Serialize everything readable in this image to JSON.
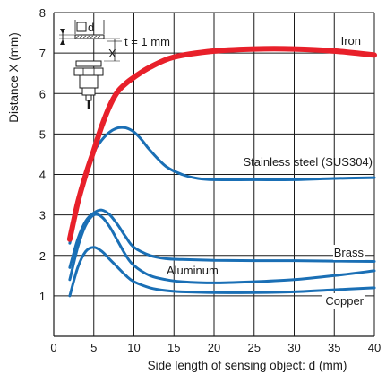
{
  "chart_data": {
    "type": "line",
    "xlabel": "Side length of sensing object: d (mm)",
    "ylabel": "Distance X (mm)",
    "xlim": [
      0,
      40
    ],
    "ylim": [
      0,
      8
    ],
    "xticks": [
      0,
      5,
      10,
      15,
      20,
      25,
      30,
      35,
      40
    ],
    "yticks": [
      1,
      2,
      3,
      4,
      5,
      6,
      7,
      8
    ],
    "grid": true,
    "series": [
      {
        "name": "Iron",
        "color": "#e8202a",
        "line_style": "thick",
        "x": [
          2,
          3,
          4,
          5,
          6,
          7,
          8,
          9,
          10,
          12,
          15,
          20,
          25,
          30,
          35,
          40
        ],
        "y": [
          2.4,
          3.3,
          4.0,
          4.6,
          5.2,
          5.7,
          6.05,
          6.25,
          6.4,
          6.65,
          6.9,
          7.05,
          7.1,
          7.1,
          7.05,
          6.95
        ]
      },
      {
        "name": "Stainless steel (SUS304)",
        "color": "#1a6fb5",
        "x": [
          2,
          3,
          4,
          5,
          6,
          7,
          8,
          9,
          10,
          11,
          12,
          14,
          16,
          18,
          20,
          25,
          30,
          35,
          40
        ],
        "y": [
          2.3,
          3.2,
          4.0,
          4.55,
          4.85,
          5.05,
          5.15,
          5.15,
          5.05,
          4.85,
          4.6,
          4.2,
          4.0,
          3.9,
          3.87,
          3.87,
          3.87,
          3.9,
          3.92
        ]
      },
      {
        "name": "Brass",
        "color": "#1a6fb5",
        "x": [
          2,
          3,
          4,
          5,
          6,
          7,
          8,
          9,
          10,
          12,
          14,
          16,
          20,
          25,
          30,
          35,
          40
        ],
        "y": [
          1.7,
          2.4,
          2.85,
          3.05,
          3.12,
          3.0,
          2.75,
          2.45,
          2.2,
          2.0,
          1.92,
          1.9,
          1.88,
          1.87,
          1.87,
          1.86,
          1.85
        ]
      },
      {
        "name": "Aluminum",
        "color": "#1a6fb5",
        "x": [
          2,
          3,
          4,
          5,
          6,
          7,
          8,
          9,
          10,
          12,
          14,
          16,
          20,
          25,
          30,
          35,
          40
        ],
        "y": [
          1.4,
          2.2,
          2.75,
          3.0,
          2.95,
          2.7,
          2.35,
          2.0,
          1.75,
          1.5,
          1.4,
          1.35,
          1.32,
          1.35,
          1.4,
          1.5,
          1.62
        ]
      },
      {
        "name": "Copper",
        "color": "#1a6fb5",
        "x": [
          2,
          3,
          4,
          5,
          6,
          7,
          8,
          9,
          10,
          12,
          14,
          16,
          20,
          25,
          30,
          35,
          40
        ],
        "y": [
          1.0,
          1.7,
          2.1,
          2.2,
          2.1,
          1.9,
          1.7,
          1.5,
          1.35,
          1.2,
          1.13,
          1.1,
          1.08,
          1.08,
          1.1,
          1.15,
          1.2
        ]
      }
    ],
    "annotations": {
      "d_label": "d",
      "t_label": "t = 1 mm",
      "x_label": "X"
    }
  }
}
